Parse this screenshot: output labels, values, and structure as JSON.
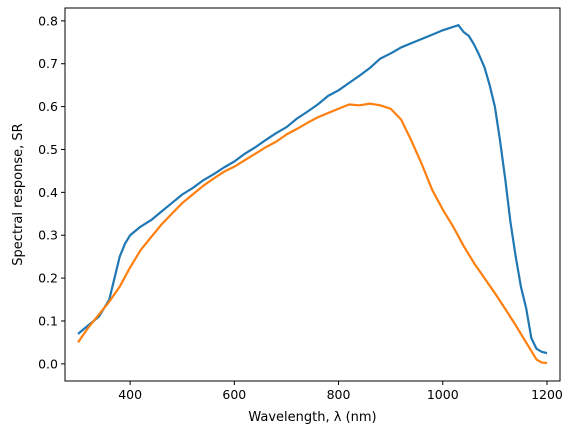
{
  "chart_data": {
    "type": "line",
    "title": "",
    "xlabel": "Wavelength, λ (nm)",
    "ylabel": "Spectral response, SR",
    "xlim": [
      275,
      1225
    ],
    "ylim": [
      -0.04,
      0.83
    ],
    "grid": false,
    "x_ticks": [
      400,
      600,
      800,
      1000,
      1200
    ],
    "y_ticks": [
      0.0,
      0.1,
      0.2,
      0.3,
      0.4,
      0.5,
      0.6,
      0.7,
      0.8
    ],
    "series": [
      {
        "color": "#1f77b4",
        "x": [
          300,
          320,
          340,
          360,
          370,
          380,
          390,
          400,
          420,
          440,
          460,
          480,
          500,
          520,
          540,
          560,
          580,
          600,
          620,
          640,
          660,
          680,
          700,
          720,
          740,
          760,
          780,
          800,
          820,
          840,
          860,
          880,
          900,
          920,
          940,
          960,
          980,
          1000,
          1010,
          1020,
          1030,
          1040,
          1050,
          1060,
          1070,
          1080,
          1090,
          1100,
          1110,
          1120,
          1130,
          1140,
          1150,
          1160,
          1170,
          1180,
          1190,
          1200
        ],
        "y": [
          0.07,
          0.09,
          0.11,
          0.15,
          0.2,
          0.25,
          0.28,
          0.3,
          0.32,
          0.335,
          0.355,
          0.375,
          0.395,
          0.41,
          0.428,
          0.442,
          0.458,
          0.472,
          0.49,
          0.505,
          0.522,
          0.538,
          0.552,
          0.572,
          0.588,
          0.605,
          0.625,
          0.638,
          0.655,
          0.672,
          0.69,
          0.712,
          0.724,
          0.738,
          0.748,
          0.758,
          0.768,
          0.778,
          0.782,
          0.786,
          0.79,
          0.774,
          0.765,
          0.745,
          0.72,
          0.692,
          0.65,
          0.6,
          0.52,
          0.43,
          0.33,
          0.25,
          0.18,
          0.13,
          0.06,
          0.035,
          0.028,
          0.025
        ]
      },
      {
        "color": "#ff7f0e",
        "x": [
          300,
          320,
          340,
          360,
          380,
          400,
          420,
          440,
          460,
          480,
          500,
          520,
          540,
          560,
          580,
          600,
          620,
          640,
          660,
          680,
          700,
          720,
          740,
          760,
          780,
          800,
          820,
          840,
          860,
          880,
          900,
          920,
          940,
          960,
          980,
          1000,
          1020,
          1040,
          1060,
          1080,
          1100,
          1120,
          1140,
          1160,
          1180,
          1190,
          1200
        ],
        "y": [
          0.05,
          0.085,
          0.115,
          0.145,
          0.18,
          0.225,
          0.265,
          0.295,
          0.325,
          0.35,
          0.375,
          0.395,
          0.415,
          0.432,
          0.448,
          0.46,
          0.475,
          0.49,
          0.505,
          0.518,
          0.535,
          0.548,
          0.562,
          0.575,
          0.585,
          0.595,
          0.605,
          0.603,
          0.607,
          0.603,
          0.595,
          0.57,
          0.52,
          0.465,
          0.405,
          0.36,
          0.32,
          0.275,
          0.235,
          0.2,
          0.165,
          0.128,
          0.09,
          0.05,
          0.01,
          0.003,
          0.002
        ]
      }
    ]
  }
}
